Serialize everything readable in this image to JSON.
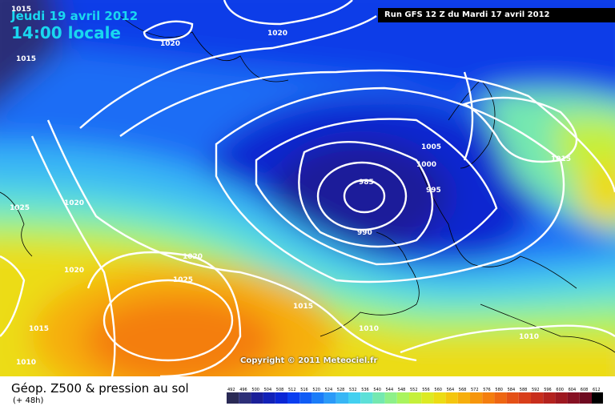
{
  "header": {
    "date": "Jeudi 19 avril 2012",
    "time": "14:00 locale",
    "run": "Run GFS 12 Z du Mardi 17 avril 2012"
  },
  "footer": {
    "title": "Géop. Z500 & pression au sol",
    "subtitle": "(+ 48h)",
    "copyright": "Copyright © 2011 Meteociel.fr"
  },
  "isobars": [
    {
      "label": "1015",
      "id": "a"
    },
    {
      "label": "1015",
      "id": "b"
    },
    {
      "label": "1020",
      "id": "c"
    },
    {
      "label": "1020",
      "id": "d"
    },
    {
      "label": "1025",
      "id": "e"
    },
    {
      "label": "1020",
      "id": "f"
    },
    {
      "label": "1020",
      "id": "g"
    },
    {
      "label": "1020",
      "id": "h"
    },
    {
      "label": "1025",
      "id": "i"
    },
    {
      "label": "1015",
      "id": "j"
    },
    {
      "label": "1010",
      "id": "k"
    },
    {
      "label": "1015",
      "id": "l"
    },
    {
      "label": "1010",
      "id": "m"
    },
    {
      "label": "985",
      "id": "n"
    },
    {
      "label": "990",
      "id": "o"
    },
    {
      "label": "995",
      "id": "p"
    },
    {
      "label": "1000",
      "id": "q"
    },
    {
      "label": "1005",
      "id": "r"
    },
    {
      "label": "1015",
      "id": "s"
    },
    {
      "label": "1010",
      "id": "t"
    }
  ],
  "legend": {
    "values": [
      "492",
      "496",
      "500",
      "504",
      "508",
      "512",
      "516",
      "520",
      "524",
      "528",
      "532",
      "536",
      "540",
      "544",
      "548",
      "552",
      "556",
      "560",
      "564",
      "568",
      "572",
      "576",
      "580",
      "584",
      "588",
      "592",
      "596",
      "600",
      "604",
      "608",
      "612"
    ],
    "colors": [
      "#2a2a55",
      "#2d2f78",
      "#1b1f98",
      "#1222b8",
      "#0a26d6",
      "#0a3ef0",
      "#0f5cf5",
      "#1a7cf8",
      "#2a9af8",
      "#37b6f5",
      "#43d0f0",
      "#5de0d8",
      "#74e8b0",
      "#8ef08a",
      "#a9f45e",
      "#c5f03a",
      "#dcea24",
      "#ecdc14",
      "#f4c60e",
      "#f6ae0c",
      "#f6960c",
      "#f47e0e",
      "#ee6612",
      "#e45016",
      "#d83e1a",
      "#c82e1c",
      "#b4221e",
      "#9e1820",
      "#861022",
      "#6e0a20",
      "#000000"
    ]
  }
}
